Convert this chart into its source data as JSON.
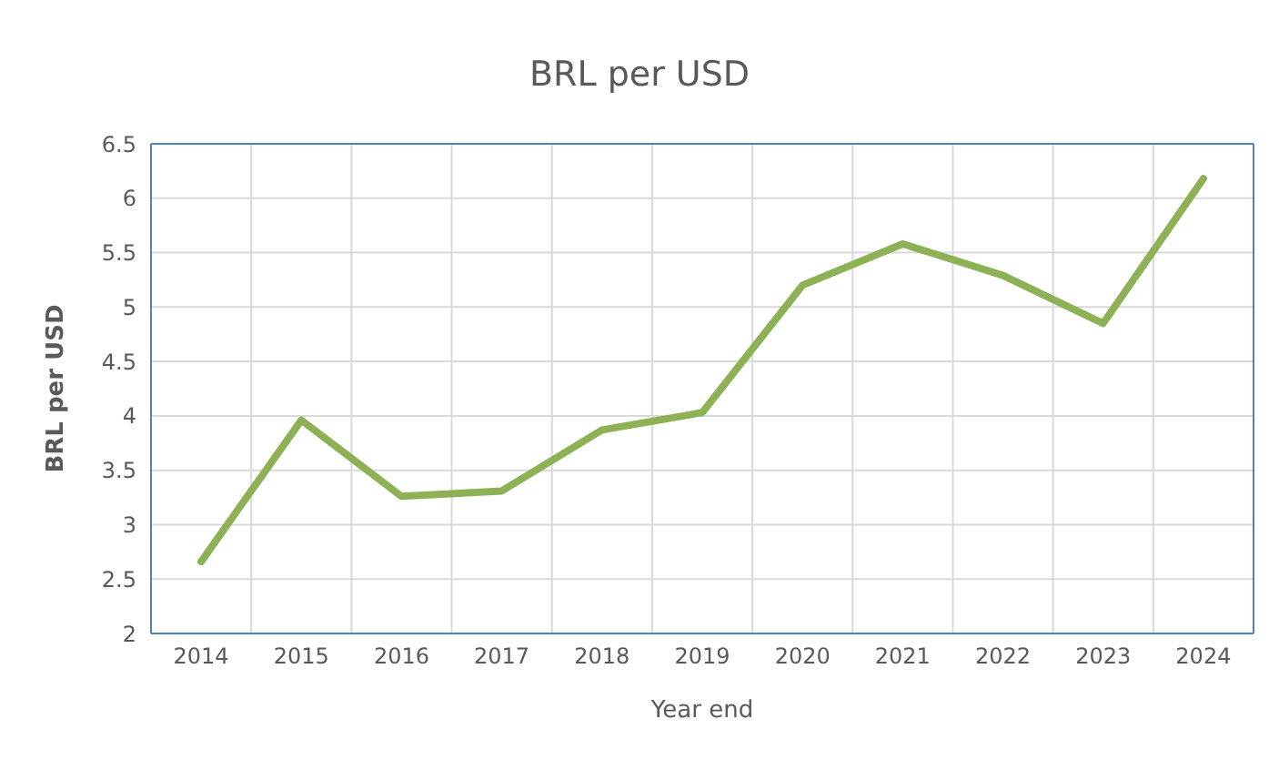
{
  "chart_data": {
    "type": "line",
    "title": "BRL per USD",
    "xlabel": "Year end",
    "ylabel": "BRL per USD",
    "categories": [
      "2014",
      "2015",
      "2016",
      "2017",
      "2018",
      "2019",
      "2020",
      "2021",
      "2022",
      "2023",
      "2024"
    ],
    "series": [
      {
        "color": "#8db255",
        "values": [
          2.66,
          3.96,
          3.26,
          3.31,
          3.87,
          4.03,
          5.2,
          5.58,
          5.29,
          4.85,
          6.18
        ]
      }
    ],
    "ylim": [
      2,
      6.5
    ],
    "yticks": [
      2,
      2.5,
      3,
      3.5,
      4,
      4.5,
      5,
      5.5,
      6,
      6.5
    ],
    "grid": true,
    "marker": "none",
    "line_style": "solid"
  }
}
